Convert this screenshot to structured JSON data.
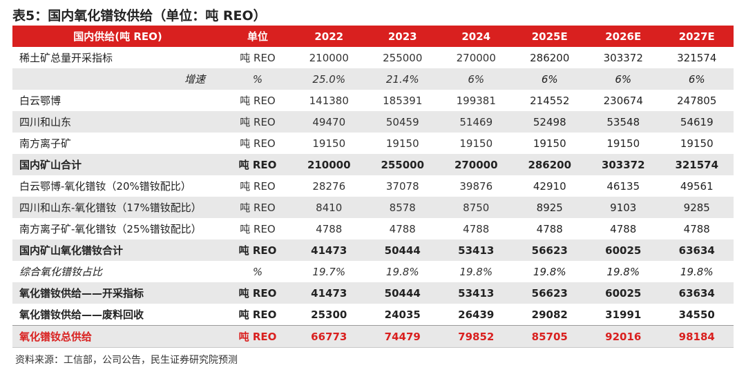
{
  "title": "表5：国内氧化镨钕供给（单位：吨 REO）",
  "header": [
    "国内供给(吨 REO)",
    "单位",
    "2022",
    "2023",
    "2024",
    "2025E",
    "2026E",
    "2027E"
  ],
  "rows": [
    {
      "cells": [
        "稀土矿总量开采指标",
        "吨 REO",
        "210000",
        "255000",
        "270000",
        "286200",
        "303372",
        "321574"
      ],
      "style": "plain"
    },
    {
      "cells": [
        "增速",
        "%",
        "25.0%",
        "21.4%",
        "6%",
        "6%",
        "6%",
        "6%"
      ],
      "style": "shade italic right"
    },
    {
      "cells": [
        "白云鄂博",
        "吨 REO",
        "141380",
        "185391",
        "199381",
        "214552",
        "230674",
        "247805"
      ],
      "style": "plain"
    },
    {
      "cells": [
        "四川和山东",
        "吨 REO",
        "49470",
        "50459",
        "51469",
        "52498",
        "53548",
        "54619"
      ],
      "style": "shade"
    },
    {
      "cells": [
        "南方离子矿",
        "吨 REO",
        "19150",
        "19150",
        "19150",
        "19150",
        "19150",
        "19150"
      ],
      "style": "plain"
    },
    {
      "cells": [
        "国内矿山合计",
        "吨 REO",
        "210000",
        "255000",
        "270000",
        "286200",
        "303372",
        "321574"
      ],
      "style": "shade bold"
    },
    {
      "cells": [
        "白云鄂博-氧化镨钕（20%镨钕配比）",
        "吨 REO",
        "28276",
        "37078",
        "39876",
        "42910",
        "46135",
        "49561"
      ],
      "style": "plain"
    },
    {
      "cells": [
        "四川和山东-氧化镨钕（17%镨钕配比）",
        "吨 REO",
        "8410",
        "8578",
        "8750",
        "8925",
        "9103",
        "9285"
      ],
      "style": "shade"
    },
    {
      "cells": [
        "南方离子矿-氧化镨钕（25%镨钕配比）",
        "吨 REO",
        "4788",
        "4788",
        "4788",
        "4788",
        "4788",
        "4788"
      ],
      "style": "plain"
    },
    {
      "cells": [
        "国内矿山氧化镨钕合计",
        "吨 REO",
        "41473",
        "50444",
        "53413",
        "56623",
        "60025",
        "63634"
      ],
      "style": "shade bold"
    },
    {
      "cells": [
        "综合氧化镨钕占比",
        "%",
        "19.7%",
        "19.8%",
        "19.8%",
        "19.8%",
        "19.8%",
        "19.8%"
      ],
      "style": "italic"
    },
    {
      "cells": [
        "氧化镨钕供给——开采指标",
        "吨 REO",
        "41473",
        "50444",
        "53413",
        "56623",
        "60025",
        "63634"
      ],
      "style": "shade bold"
    },
    {
      "cells": [
        "氧化镨钕供给——废料回收",
        "吨 REO",
        "25300",
        "24035",
        "26439",
        "29082",
        "31991",
        "34550"
      ],
      "style": "bold"
    },
    {
      "cells": [
        "氧化镨钕总供给",
        "吨 REO",
        "66773",
        "74479",
        "79852",
        "85705",
        "92016",
        "98184"
      ],
      "style": "shade total"
    }
  ],
  "source": "资料来源：工信部，公司公告，民生证券研究院预测",
  "colors": {
    "header_bg": "#d9201f",
    "shade": "#e8e8e8",
    "total_text": "#d9201f"
  }
}
